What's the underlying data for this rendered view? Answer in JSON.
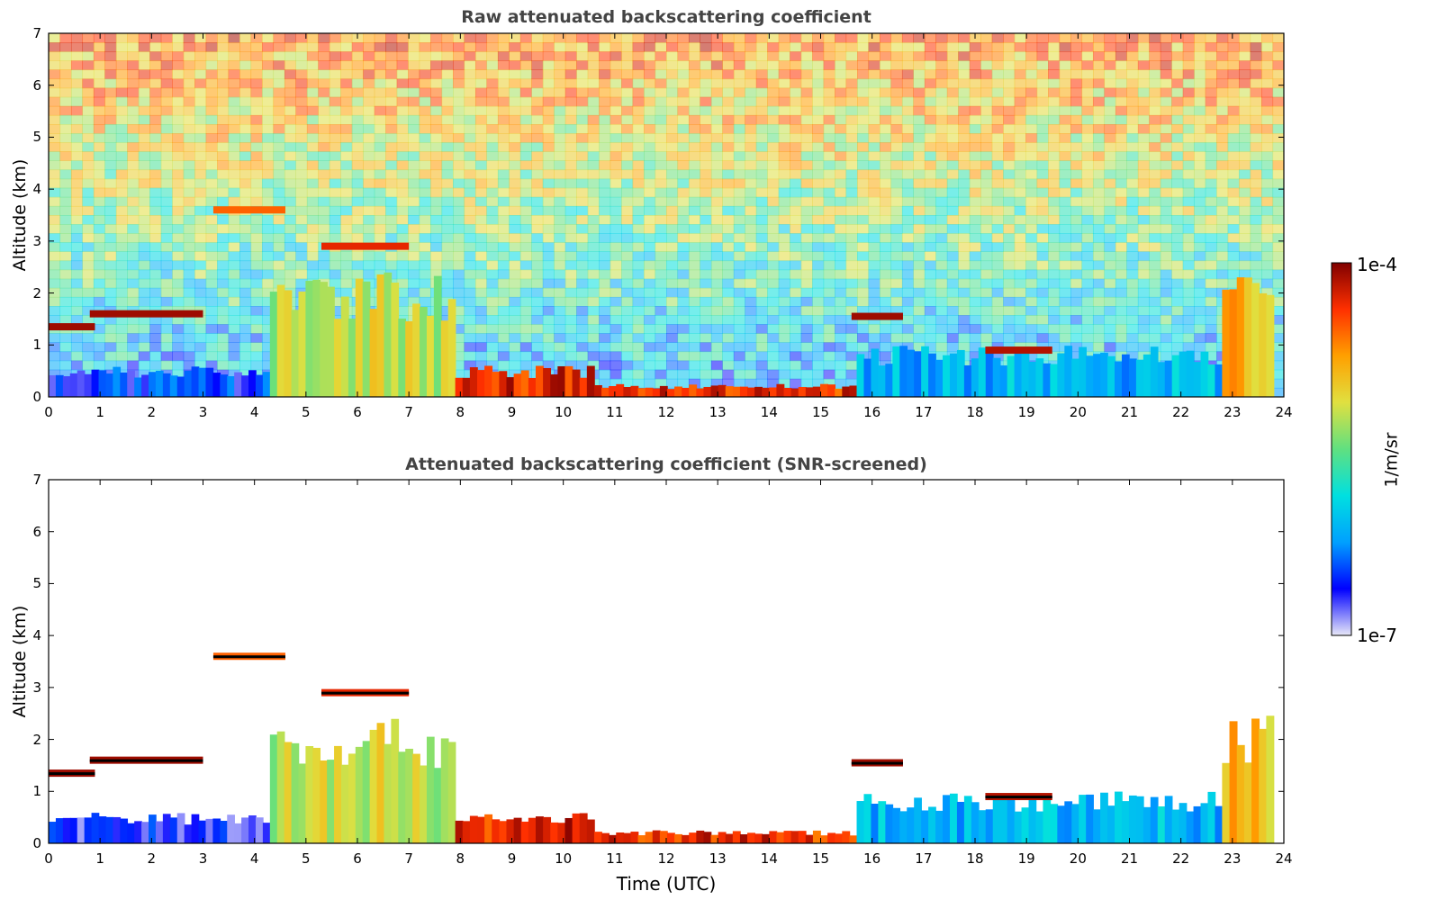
{
  "chart_data": [
    {
      "type": "heatmap",
      "title": "Raw attenuated backscattering coefficient",
      "xlabel": "",
      "ylabel": "Altitude (km)",
      "xlim": [
        0,
        24
      ],
      "ylim": [
        0,
        7
      ],
      "xticks": [
        "0",
        "1",
        "2",
        "3",
        "4",
        "5",
        "6",
        "7",
        "8",
        "9",
        "10",
        "11",
        "12",
        "13",
        "14",
        "15",
        "16",
        "17",
        "18",
        "19",
        "20",
        "21",
        "22",
        "23",
        "24"
      ],
      "yticks": [
        "0",
        "1",
        "2",
        "3",
        "4",
        "5",
        "6",
        "7"
      ],
      "layers": [
        {
          "x": [
            0,
            4.3
          ],
          "y": [
            0,
            0.6
          ],
          "level": 0.15
        },
        {
          "x": [
            4.3,
            7.9
          ],
          "y": [
            0,
            2.4
          ],
          "level": 0.6
        },
        {
          "x": [
            7.9,
            10.6
          ],
          "y": [
            0,
            0.6
          ],
          "level": 0.9
        },
        {
          "x": [
            10.6,
            15.7
          ],
          "y": [
            0,
            0.25
          ],
          "level": 0.88
        },
        {
          "x": [
            15.7,
            22.8
          ],
          "y": [
            0,
            1.0
          ],
          "level": 0.3
        },
        {
          "x": [
            22.8,
            23.8
          ],
          "y": [
            0,
            2.5
          ],
          "level": 0.7
        }
      ],
      "cloud_layers": [
        {
          "x": [
            0,
            0.9
          ],
          "y": 1.35,
          "level": 0.97
        },
        {
          "x": [
            0.8,
            3.0
          ],
          "y": 1.6,
          "level": 0.97
        },
        {
          "x": [
            3.2,
            4.6
          ],
          "y": 3.6,
          "level": 0.82
        },
        {
          "x": [
            5.3,
            7.0
          ],
          "y": 2.9,
          "level": 0.9
        },
        {
          "x": [
            15.6,
            16.6
          ],
          "y": 1.55,
          "level": 0.97
        },
        {
          "x": [
            18.2,
            19.5
          ],
          "y": 0.9,
          "level": 0.95
        }
      ]
    },
    {
      "type": "heatmap",
      "title": "Attenuated backscattering coefficient (SNR-screened)",
      "xlabel": "Time (UTC)",
      "ylabel": "Altitude (km)",
      "xlim": [
        0,
        24
      ],
      "ylim": [
        0,
        7
      ],
      "xticks": [
        "0",
        "1",
        "2",
        "3",
        "4",
        "5",
        "6",
        "7",
        "8",
        "9",
        "10",
        "11",
        "12",
        "13",
        "14",
        "15",
        "16",
        "17",
        "18",
        "19",
        "20",
        "21",
        "22",
        "23",
        "24"
      ],
      "yticks": [
        "0",
        "1",
        "2",
        "3",
        "4",
        "5",
        "6",
        "7"
      ],
      "layers": [
        {
          "x": [
            0,
            4.3
          ],
          "y": [
            0,
            0.6
          ],
          "level": 0.12
        },
        {
          "x": [
            4.3,
            7.9
          ],
          "y": [
            0,
            2.4
          ],
          "level": 0.6
        },
        {
          "x": [
            7.9,
            10.6
          ],
          "y": [
            0,
            0.6
          ],
          "level": 0.9
        },
        {
          "x": [
            10.6,
            15.7
          ],
          "y": [
            0,
            0.25
          ],
          "level": 0.88
        },
        {
          "x": [
            15.7,
            22.8
          ],
          "y": [
            0,
            1.0
          ],
          "level": 0.3
        },
        {
          "x": [
            22.8,
            23.8
          ],
          "y": [
            0,
            2.5
          ],
          "level": 0.7
        }
      ],
      "cloud_layers": [
        {
          "x": [
            0,
            0.9
          ],
          "y": 1.35,
          "level": 0.97
        },
        {
          "x": [
            0.8,
            3.0
          ],
          "y": 1.6,
          "level": 0.97
        },
        {
          "x": [
            3.2,
            4.6
          ],
          "y": 3.6,
          "level": 0.82
        },
        {
          "x": [
            5.3,
            7.0
          ],
          "y": 2.9,
          "level": 0.9
        },
        {
          "x": [
            15.6,
            16.6
          ],
          "y": 1.55,
          "level": 0.97
        },
        {
          "x": [
            18.2,
            19.5
          ],
          "y": 0.9,
          "level": 0.95
        }
      ]
    }
  ],
  "colorbar": {
    "max_label": "1e-4",
    "min_label": "1e-7",
    "title": "1/m/sr",
    "colormap": [
      "#e8e8f8",
      "#0000ff",
      "#00a0ff",
      "#00e0e0",
      "#60e080",
      "#e0e040",
      "#ffa000",
      "#ff3000",
      "#800000"
    ]
  }
}
